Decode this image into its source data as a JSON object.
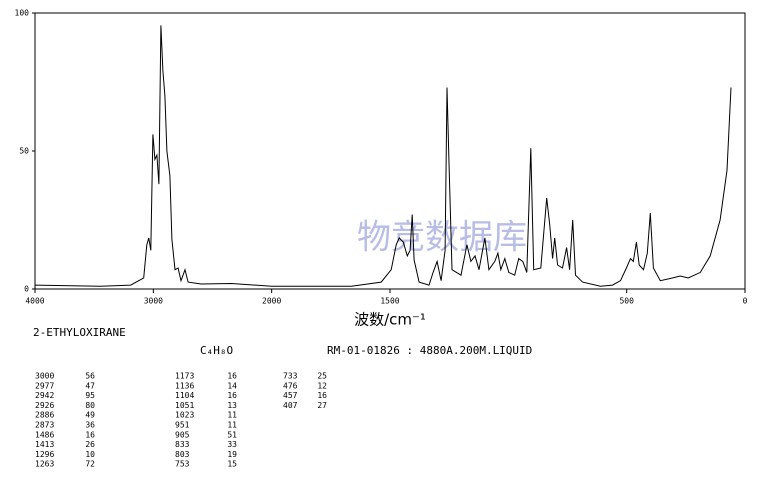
{
  "chart_data": {
    "type": "line",
    "title": "2-ETHYLOXIRANE",
    "formula": "C₄H₈O",
    "subtitle": "RM-01-01826 : 4880A.200M.LIQUID",
    "x_label": "波数/cm⁻¹",
    "watermark": "物竞数据库",
    "xlim": [
      4000,
      0
    ],
    "x_scale_break": 2000,
    "xticks": [
      4000,
      3000,
      2000,
      1500,
      500,
      0
    ],
    "ylim": [
      0,
      100
    ],
    "yticks": [
      0,
      50,
      100
    ],
    "color": "#000000",
    "x": [
      4000,
      3447,
      3191,
      3081,
      3055,
      3038,
      3021,
      3004,
      2987,
      2970,
      2953,
      2936,
      2919,
      2902,
      2885,
      2877,
      2860,
      2843,
      2817,
      2791,
      2766,
      2732,
      2706,
      2596,
      2340,
      2000,
      1663,
      1537,
      1495,
      1474,
      1461,
      1444,
      1427,
      1415,
      1406,
      1398,
      1377,
      1335,
      1318,
      1301,
      1284,
      1267,
      1259,
      1251,
      1238,
      1200,
      1175,
      1158,
      1141,
      1124,
      1099,
      1082,
      1057,
      1044,
      1032,
      1015,
      998,
      973,
      956,
      939,
      922,
      905,
      893,
      863,
      838,
      825,
      813,
      804,
      792,
      771,
      754,
      741,
      728,
      716,
      686,
      611,
      560,
      526,
      501,
      484,
      472,
      459,
      447,
      429,
      413,
      400,
      387,
      358,
      307,
      274,
      240,
      189,
      147,
      105,
      76,
      59
    ],
    "values": [
      1.4,
      1,
      1.4,
      4,
      16,
      18.5,
      14,
      56,
      47,
      48.5,
      38,
      95.5,
      79,
      70,
      50,
      47,
      41,
      18,
      7,
      7.6,
      3,
      7,
      2.5,
      1.8,
      2,
      1,
      1,
      2.5,
      7,
      16,
      18.5,
      17,
      12,
      14,
      27,
      10.5,
      2.5,
      1.4,
      6,
      10,
      3,
      14,
      73,
      47,
      7,
      5,
      16,
      10,
      12,
      7,
      18.5,
      7,
      10,
      13,
      7,
      11,
      6,
      5,
      11,
      10,
      6,
      51,
      7,
      7.6,
      33,
      23,
      11,
      18.5,
      8.7,
      7.6,
      15,
      7,
      25,
      5,
      2.5,
      1,
      1.4,
      3,
      7.6,
      11,
      10,
      17,
      8.7,
      7,
      13,
      27.5,
      7.6,
      3,
      4,
      4.7,
      4,
      6,
      12,
      25,
      43,
      73
    ],
    "peaks": {
      "wavenumbers": [
        3000,
        2977,
        2942,
        2926,
        2886,
        2873,
        1486,
        1413,
        1296,
        1263,
        1173,
        1136,
        1104,
        1051,
        1023,
        951,
        905,
        833,
        803,
        753,
        733,
        476,
        457,
        407
      ],
      "intensities": [
        56,
        47,
        95,
        80,
        49,
        36,
        16,
        26,
        10,
        72,
        16,
        14,
        16,
        13,
        11,
        11,
        51,
        33,
        19,
        15,
        25,
        12,
        16,
        27
      ]
    }
  }
}
